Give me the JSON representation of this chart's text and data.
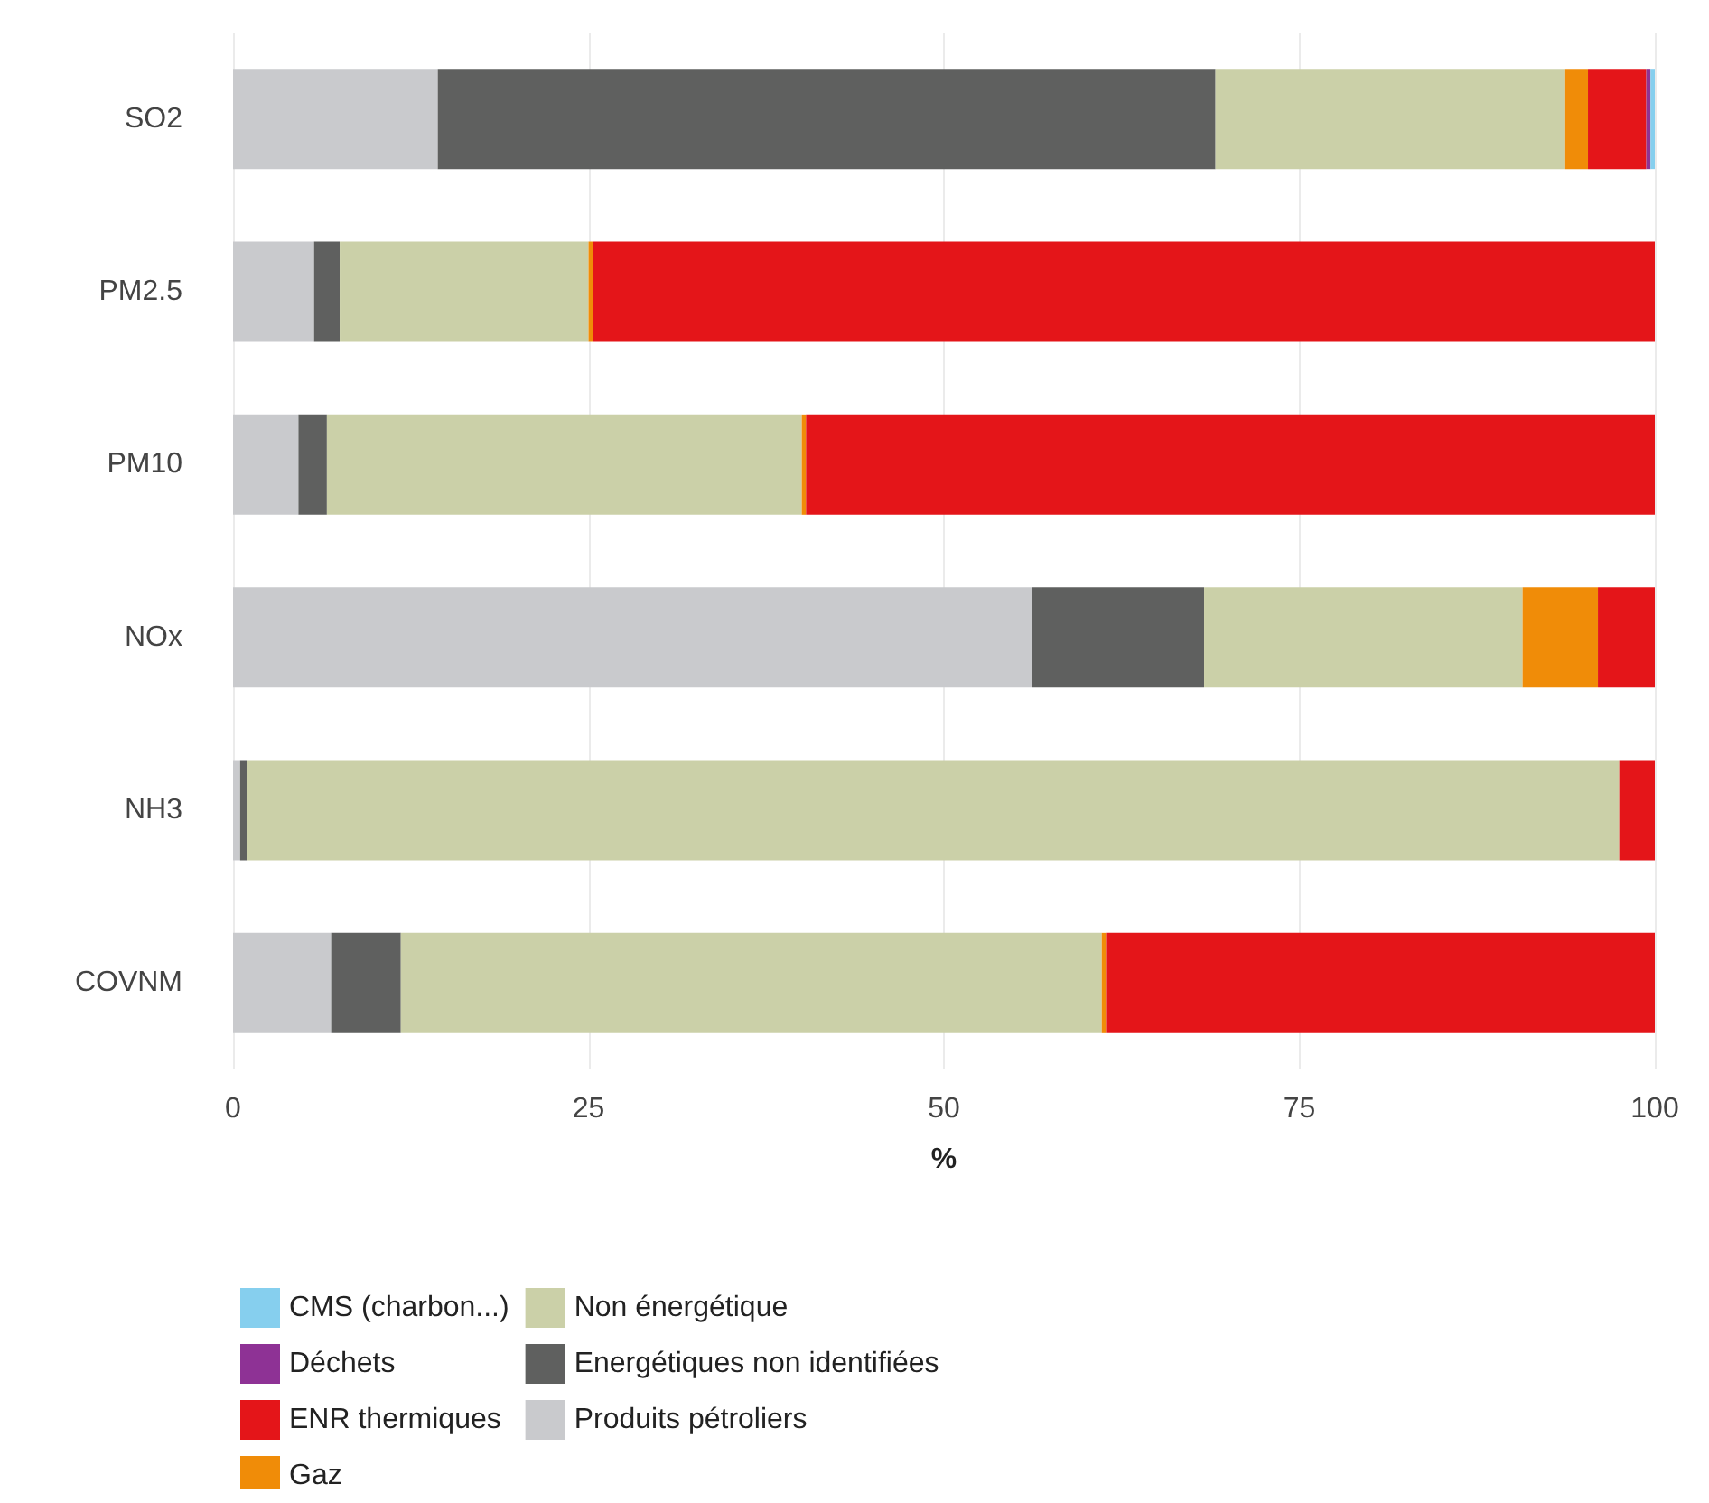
{
  "chart_data": {
    "type": "bar",
    "orientation": "horizontal",
    "stacked": true,
    "xlabel": "%",
    "categories": [
      "SO2",
      "PM2.5",
      "PM10",
      "NOx",
      "NH3",
      "COVNM"
    ],
    "series": [
      {
        "name": "Produits pétroliers",
        "color": "#c9cacd",
        "values": [
          14.4,
          5.7,
          4.6,
          56.2,
          0.5,
          6.9
        ]
      },
      {
        "name": "Energétiques non identifiées",
        "color": "#5f605f",
        "values": [
          54.7,
          1.8,
          2.0,
          12.1,
          0.5,
          4.9
        ]
      },
      {
        "name": "Non énergétique",
        "color": "#cbd0a8",
        "values": [
          24.6,
          17.5,
          33.4,
          22.4,
          96.5,
          49.3
        ]
      },
      {
        "name": "Gaz",
        "color": "#f08c08",
        "values": [
          1.6,
          0.3,
          0.3,
          5.3,
          0,
          0.3
        ]
      },
      {
        "name": "ENR thermiques",
        "color": "#e41519",
        "values": [
          4.1,
          74.7,
          59.7,
          4.0,
          2.5,
          38.6
        ]
      },
      {
        "name": "Déchets",
        "color": "#8e3295",
        "values": [
          0.3,
          0,
          0,
          0,
          0,
          0
        ]
      },
      {
        "name": "CMS (charbon...)",
        "color": "#86cfee",
        "values": [
          0.3,
          0,
          0,
          0,
          0,
          0
        ]
      }
    ],
    "xlim": [
      0,
      100
    ],
    "xticks": [
      0,
      25,
      50,
      75,
      100
    ],
    "grid": "x",
    "legend": "bottom"
  }
}
